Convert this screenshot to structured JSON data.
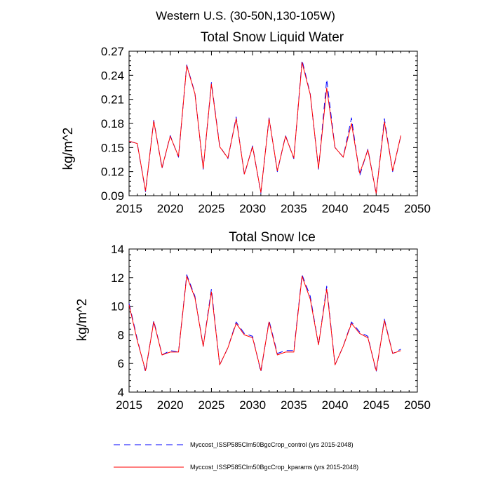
{
  "figure": {
    "title": "Western U.S. (30-50N,130-105W)"
  },
  "legend": {
    "entries": [
      {
        "label": "Myccost_ISSP585Clm50BgcCrop_control (yrs 2015-2048)",
        "color": "#0000ff",
        "style": "dashed"
      },
      {
        "label": "Myccost_ISSP585Clm50BgcCrop_kparams (yrs 2015-2048)",
        "color": "#ff0000",
        "style": "solid"
      }
    ]
  },
  "chart_data": [
    {
      "type": "line",
      "title": "Total Snow Liquid Water",
      "xlabel": "",
      "ylabel": "kg/m^2",
      "xlim": [
        2015,
        2050
      ],
      "ylim": [
        0.09,
        0.27
      ],
      "xticks": [
        2015,
        2020,
        2025,
        2030,
        2035,
        2040,
        2045,
        2050
      ],
      "yticks": [
        0.09,
        0.12,
        0.15,
        0.18,
        0.21,
        0.24,
        0.27
      ],
      "ytick_labels": [
        "0.09",
        "0.12",
        "0.15",
        "0.18",
        "0.21",
        "0.24",
        "0.27"
      ],
      "grid": false,
      "x": [
        2015,
        2016,
        2017,
        2018,
        2019,
        2020,
        2021,
        2022,
        2023,
        2024,
        2025,
        2026,
        2027,
        2028,
        2029,
        2030,
        2031,
        2032,
        2033,
        2034,
        2035,
        2036,
        2037,
        2038,
        2039,
        2040,
        2041,
        2042,
        2043,
        2044,
        2045,
        2046,
        2047,
        2048
      ],
      "series": [
        {
          "name": "Myccost_ISSP585Clm50BgcCrop_control (yrs 2015-2048)",
          "color": "#0000ff",
          "style": "dashed",
          "values": [
            0.158,
            0.155,
            0.095,
            0.184,
            0.124,
            0.165,
            0.138,
            0.253,
            0.218,
            0.123,
            0.231,
            0.152,
            0.136,
            0.188,
            0.116,
            0.152,
            0.093,
            0.187,
            0.12,
            0.165,
            0.136,
            0.259,
            0.217,
            0.123,
            0.235,
            0.15,
            0.138,
            0.187,
            0.115,
            0.148,
            0.092,
            0.186,
            0.12,
            0.165
          ]
        },
        {
          "name": "Myccost_ISSP585Clm50BgcCrop_kparams (yrs 2015-2048)",
          "color": "#ff0000",
          "style": "solid",
          "values": [
            0.158,
            0.155,
            0.096,
            0.183,
            0.125,
            0.164,
            0.139,
            0.252,
            0.217,
            0.124,
            0.229,
            0.151,
            0.137,
            0.186,
            0.117,
            0.151,
            0.094,
            0.186,
            0.121,
            0.164,
            0.137,
            0.256,
            0.216,
            0.124,
            0.224,
            0.15,
            0.138,
            0.18,
            0.118,
            0.147,
            0.093,
            0.182,
            0.121,
            0.165
          ]
        }
      ]
    },
    {
      "type": "line",
      "title": "Total Snow Ice",
      "xlabel": "",
      "ylabel": "kg/m^2",
      "xlim": [
        2015,
        2050
      ],
      "ylim": [
        4,
        14
      ],
      "xticks": [
        2015,
        2020,
        2025,
        2030,
        2035,
        2040,
        2045,
        2050
      ],
      "yticks": [
        4,
        6,
        8,
        10,
        12,
        14
      ],
      "ytick_labels": [
        "4",
        "6",
        "8",
        "10",
        "12",
        "14"
      ],
      "grid": false,
      "x": [
        2015,
        2016,
        2017,
        2018,
        2019,
        2020,
        2021,
        2022,
        2023,
        2024,
        2025,
        2026,
        2027,
        2028,
        2029,
        2030,
        2031,
        2032,
        2033,
        2034,
        2035,
        2036,
        2037,
        2038,
        2039,
        2040,
        2041,
        2042,
        2043,
        2044,
        2045,
        2046,
        2047,
        2048
      ],
      "series": [
        {
          "name": "Myccost_ISSP585Clm50BgcCrop_control (yrs 2015-2048)",
          "color": "#0000ff",
          "style": "dashed",
          "values": [
            10.2,
            7.7,
            5.4,
            9.0,
            6.6,
            6.9,
            6.8,
            12.2,
            10.7,
            7.2,
            11.2,
            5.9,
            7.1,
            8.9,
            8.1,
            7.9,
            5.4,
            9.0,
            6.7,
            6.9,
            6.9,
            12.2,
            10.7,
            7.3,
            11.4,
            5.9,
            7.2,
            8.9,
            8.2,
            7.9,
            5.4,
            9.1,
            6.7,
            7.0
          ]
        },
        {
          "name": "Myccost_ISSP585Clm50BgcCrop_kparams (yrs 2015-2048)",
          "color": "#ff0000",
          "style": "solid",
          "values": [
            10.1,
            7.6,
            5.5,
            8.9,
            6.6,
            6.8,
            6.8,
            12.1,
            10.6,
            7.2,
            11.0,
            5.9,
            7.1,
            8.8,
            8.0,
            7.8,
            5.5,
            8.9,
            6.6,
            6.8,
            6.8,
            12.1,
            10.5,
            7.3,
            11.2,
            5.9,
            7.2,
            8.8,
            8.1,
            7.8,
            5.5,
            9.0,
            6.7,
            6.9
          ]
        }
      ]
    }
  ]
}
